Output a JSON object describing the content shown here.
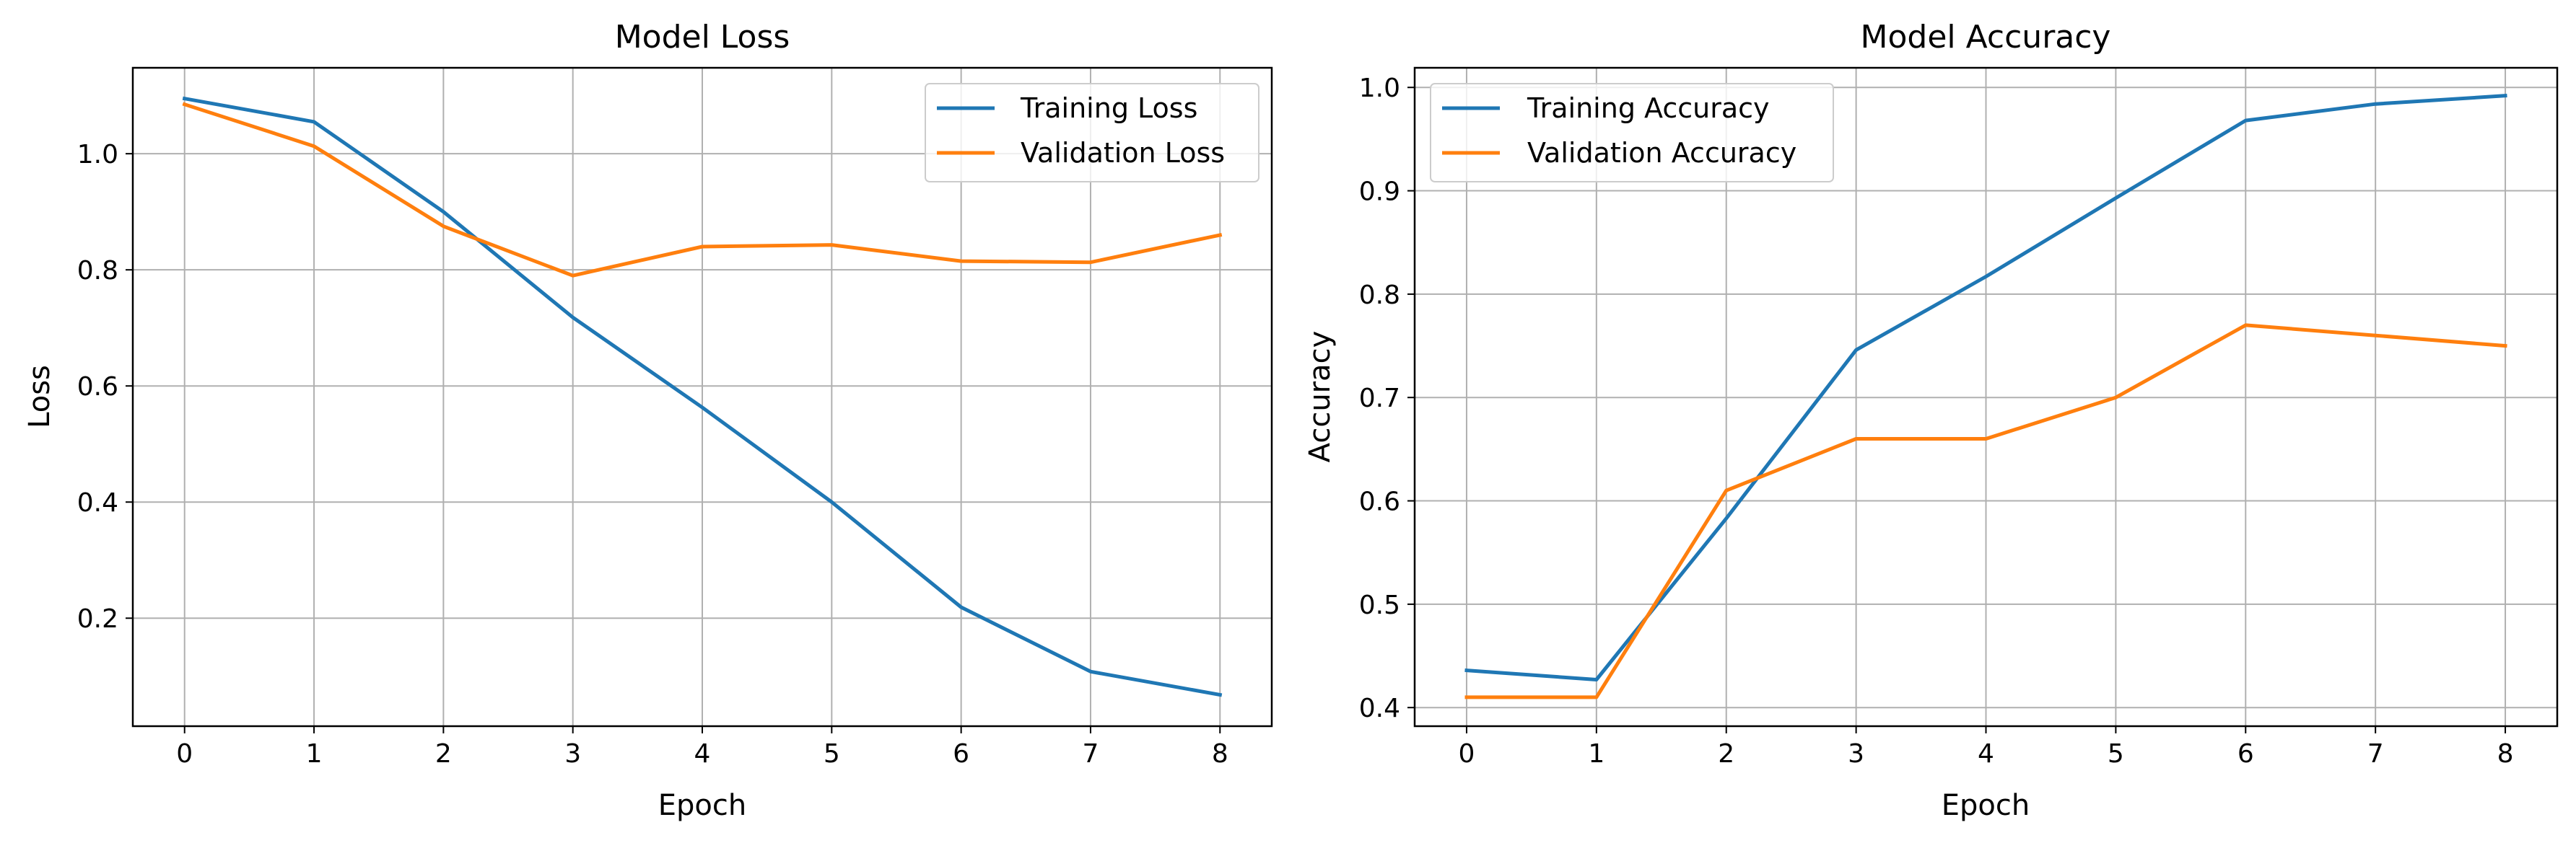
{
  "chart_data": [
    {
      "type": "line",
      "title": "Model Loss",
      "xlabel": "Epoch",
      "ylabel": "Loss",
      "x": [
        0,
        1,
        2,
        3,
        4,
        5,
        6,
        7,
        8
      ],
      "xlim": [
        -0.4,
        8.4
      ],
      "ylim": [
        0.014,
        1.148
      ],
      "xticks": [
        0,
        1,
        2,
        3,
        4,
        5,
        6,
        7,
        8
      ],
      "yticks": [
        0.2,
        0.4,
        0.6,
        0.8,
        1.0
      ],
      "ytick_labels": [
        "0.2",
        "0.4",
        "0.6",
        "0.8",
        "1.0"
      ],
      "grid": true,
      "legend": "top-right",
      "series": [
        {
          "name": "Training Loss",
          "color": "#1f77b4",
          "values": [
            1.095,
            1.055,
            0.9,
            0.718,
            0.563,
            0.4,
            0.219,
            0.108,
            0.068
          ]
        },
        {
          "name": "Validation Loss",
          "color": "#ff7f0e",
          "values": [
            1.085,
            1.013,
            0.875,
            0.79,
            0.84,
            0.843,
            0.815,
            0.813,
            0.86
          ]
        }
      ]
    },
    {
      "type": "line",
      "title": "Model Accuracy",
      "xlabel": "Epoch",
      "ylabel": "Accuracy",
      "x": [
        0,
        1,
        2,
        3,
        4,
        5,
        6,
        7,
        8
      ],
      "xlim": [
        -0.4,
        8.4
      ],
      "ylim": [
        0.382,
        1.019
      ],
      "xticks": [
        0,
        1,
        2,
        3,
        4,
        5,
        6,
        7,
        8
      ],
      "yticks": [
        0.4,
        0.5,
        0.6,
        0.7,
        0.8,
        0.9,
        1.0
      ],
      "ytick_labels": [
        "0.4",
        "0.5",
        "0.6",
        "0.7",
        "0.8",
        "0.9",
        "1.0"
      ],
      "grid": true,
      "legend": "top-left",
      "series": [
        {
          "name": "Training Accuracy",
          "color": "#1f77b4",
          "values": [
            0.436,
            0.427,
            0.583,
            0.746,
            0.817,
            0.893,
            0.968,
            0.984,
            0.992
          ]
        },
        {
          "name": "Validation Accuracy",
          "color": "#ff7f0e",
          "values": [
            0.41,
            0.41,
            0.61,
            0.66,
            0.66,
            0.7,
            0.77,
            0.76,
            0.75
          ]
        }
      ]
    }
  ]
}
